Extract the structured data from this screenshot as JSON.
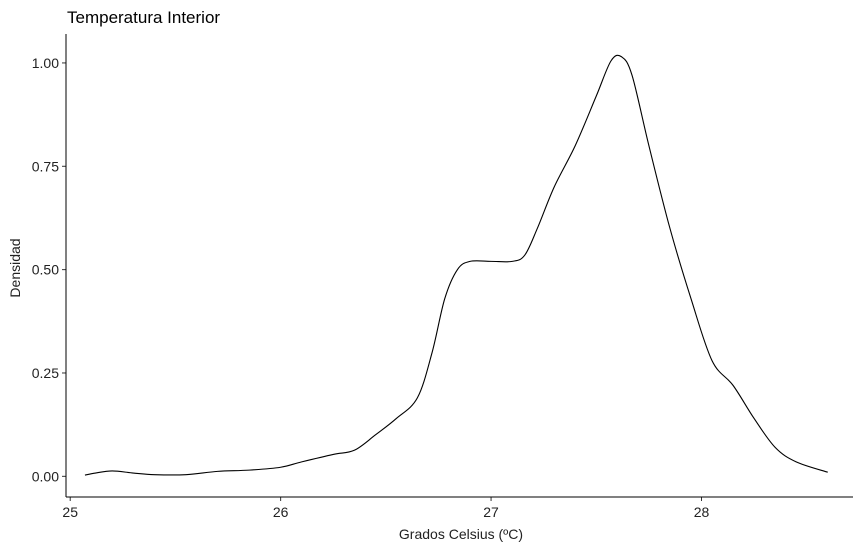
{
  "chart_data": {
    "type": "line",
    "title": "Temperatura Interior",
    "xlabel": "Grados Celsius (ºC)",
    "ylabel": "Densidad",
    "xlim": [
      24.98,
      28.72
    ],
    "ylim": [
      -0.05,
      1.07
    ],
    "x_ticks": [
      25,
      26,
      27,
      28
    ],
    "x_tick_labels": [
      "25",
      "26",
      "27",
      "28"
    ],
    "y_ticks": [
      0,
      0.25,
      0.5,
      0.75,
      1.0
    ],
    "y_tick_labels": [
      "0.00",
      "0.25",
      "0.50",
      "0.75",
      "1.00"
    ],
    "grid": false,
    "legend": "none",
    "line_color": "#000000",
    "series": [
      {
        "x": [
          25.07,
          25.12,
          25.2,
          25.3,
          25.4,
          25.55,
          25.7,
          25.85,
          26.0,
          26.1,
          26.25,
          26.35,
          26.45,
          26.55,
          26.65,
          26.72,
          26.78,
          26.84,
          26.9,
          27.0,
          27.1,
          27.16,
          27.22,
          27.3,
          27.4,
          27.5,
          27.57,
          27.62,
          27.67,
          27.75,
          27.85,
          27.95,
          28.05,
          28.15,
          28.25,
          28.35,
          28.45,
          28.6
        ],
        "y": [
          0.003,
          0.008,
          0.013,
          0.008,
          0.004,
          0.004,
          0.012,
          0.015,
          0.022,
          0.035,
          0.053,
          0.063,
          0.1,
          0.14,
          0.19,
          0.3,
          0.43,
          0.5,
          0.52,
          0.52,
          0.52,
          0.535,
          0.6,
          0.7,
          0.8,
          0.92,
          1.005,
          1.015,
          0.97,
          0.8,
          0.6,
          0.43,
          0.28,
          0.22,
          0.14,
          0.07,
          0.035,
          0.01
        ]
      }
    ]
  }
}
